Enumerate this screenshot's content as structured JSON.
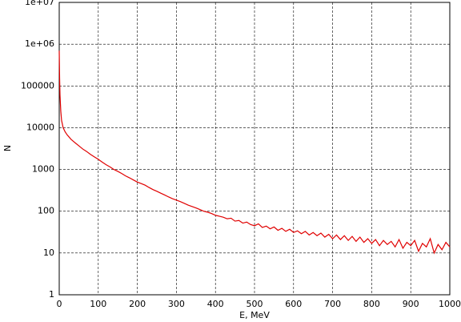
{
  "chart_data": {
    "type": "line",
    "xlabel": "E, MeV",
    "ylabel": "N",
    "x": [
      0,
      1,
      2,
      4,
      6,
      10,
      15,
      20,
      30,
      40,
      50,
      60,
      70,
      80,
      90,
      100,
      110,
      120,
      130,
      140,
      150,
      160,
      170,
      180,
      190,
      200,
      210,
      220,
      230,
      240,
      250,
      260,
      270,
      280,
      290,
      300,
      310,
      320,
      330,
      340,
      350,
      360,
      370,
      380,
      390,
      400,
      410,
      420,
      430,
      440,
      450,
      460,
      470,
      480,
      490,
      500,
      510,
      520,
      530,
      540,
      550,
      560,
      570,
      580,
      590,
      600,
      610,
      620,
      630,
      640,
      650,
      660,
      670,
      680,
      690,
      700,
      710,
      720,
      730,
      740,
      750,
      760,
      770,
      780,
      790,
      800,
      810,
      820,
      830,
      840,
      850,
      860,
      870,
      880,
      890,
      900,
      910,
      920,
      930,
      940,
      950,
      960,
      970,
      980,
      990,
      1000
    ],
    "series": [
      {
        "color": "#e00000",
        "values": [
          700000,
          150000,
          60000,
          25000,
          15000,
          10000,
          8000,
          6800,
          5300,
          4400,
          3700,
          3100,
          2700,
          2300,
          2000,
          1750,
          1500,
          1300,
          1150,
          1000,
          900,
          800,
          700,
          630,
          560,
          500,
          460,
          420,
          370,
          330,
          300,
          270,
          245,
          220,
          200,
          185,
          170,
          155,
          140,
          130,
          120,
          110,
          100,
          95,
          88,
          80,
          76,
          72,
          66,
          68,
          58,
          60,
          52,
          55,
          48,
          45,
          50,
          41,
          44,
          38,
          42,
          35,
          39,
          33,
          37,
          31,
          34,
          29,
          33,
          27,
          31,
          26,
          30,
          24,
          28,
          22,
          27,
          21,
          26,
          20,
          25,
          19,
          24,
          18,
          22,
          17,
          21,
          15,
          20,
          16,
          19,
          14,
          21,
          13,
          18,
          15,
          20,
          11,
          17,
          14,
          22,
          10,
          16,
          12,
          18,
          14
        ]
      }
    ],
    "xlim": [
      0,
      1000
    ],
    "xticks": [
      0,
      100,
      200,
      300,
      400,
      500,
      600,
      700,
      800,
      900,
      1000
    ],
    "ylim": [
      1,
      10000000
    ],
    "log_y": true,
    "yticks": [
      1,
      10,
      100,
      1000,
      10000,
      100000,
      {
        "value": 1000000,
        "label": "1e+06"
      },
      {
        "value": 10000000,
        "label": "1e+07"
      }
    ],
    "grid": true
  }
}
